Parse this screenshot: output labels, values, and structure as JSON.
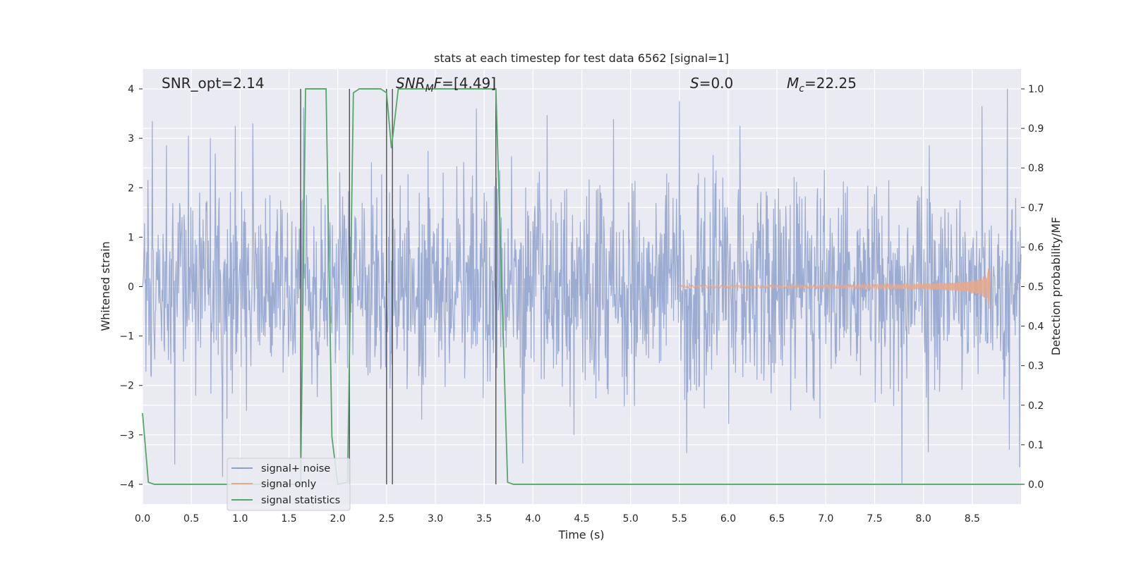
{
  "chart_data": {
    "type": "line",
    "title": "stats at each timestep for test data 6562 [signal=1]",
    "xlabel": "Time (s)",
    "ylabel_left": "Whitened strain",
    "ylabel_right": "Detection probability/MF",
    "xlim": [
      0,
      9.0
    ],
    "ylim_left": [
      -4.4,
      4.4
    ],
    "ylim_right": [
      -0.05,
      1.05
    ],
    "xticks": [
      "0.0",
      "0.5",
      "1.0",
      "1.5",
      "2.0",
      "2.5",
      "3.0",
      "3.5",
      "4.0",
      "4.5",
      "5.0",
      "5.5",
      "6.0",
      "6.5",
      "7.0",
      "7.5",
      "8.0",
      "8.5"
    ],
    "xtick_values": [
      0,
      0.5,
      1,
      1.5,
      2,
      2.5,
      3,
      3.5,
      4,
      4.5,
      5,
      5.5,
      6,
      6.5,
      7,
      7.5,
      8,
      8.5
    ],
    "yticks_left": [
      "4",
      "3",
      "2",
      "1",
      "0",
      "−1",
      "−2",
      "−3",
      "−4"
    ],
    "ytick_values_left": [
      4,
      3,
      2,
      1,
      0,
      -1,
      -2,
      -3,
      -4
    ],
    "yticks_right": [
      "1.0",
      "0.9",
      "0.8",
      "0.7",
      "0.6",
      "0.5",
      "0.4",
      "0.3",
      "0.2",
      "0.1",
      "0.0"
    ],
    "ytick_values_right": [
      1.0,
      0.9,
      0.8,
      0.7,
      0.6,
      0.5,
      0.4,
      0.3,
      0.2,
      0.1,
      0.0
    ],
    "grid": true,
    "legend_position": "lower-left",
    "annotations": {
      "snr_opt": "SNR_opt=2.14",
      "snr_mf_label": "SNR",
      "snr_mf_sub": "M",
      "snr_mf_f": "F",
      "snr_mf_value": "=[4.49]",
      "s_label": "S",
      "s_value": "=0.0",
      "mc_label": "M",
      "mc_sub": "c",
      "mc_value": "=22.25"
    },
    "vertical_markers_x": [
      1.62,
      2.12,
      2.5,
      2.56,
      3.62
    ],
    "series": [
      {
        "name": "signal+ noise",
        "color": "#8da0cb",
        "kind": "noise",
        "amplitude_std": 1.05,
        "x_range": [
          0,
          9.0
        ],
        "notable_peaks": [
          {
            "x": 0.1,
            "y": 3.35
          },
          {
            "x": 0.47,
            "y": 3.05
          },
          {
            "x": 0.95,
            "y": 3.25
          },
          {
            "x": 1.13,
            "y": 3.3
          },
          {
            "x": 3.42,
            "y": 3.6
          },
          {
            "x": 5.5,
            "y": 3.75
          },
          {
            "x": 6.12,
            "y": 3.25
          },
          {
            "x": 8.6,
            "y": 3.65
          },
          {
            "x": 8.86,
            "y": 4.0
          },
          {
            "x": 0.33,
            "y": -3.6
          },
          {
            "x": 0.82,
            "y": -3.85
          },
          {
            "x": 7.78,
            "y": -4.0
          },
          {
            "x": 8.05,
            "y": -3.35
          },
          {
            "x": 8.88,
            "y": -3.3
          }
        ]
      },
      {
        "name": "signal only",
        "color": "#e5a98d",
        "kind": "chirp",
        "x_start": 5.5,
        "x_end": 8.68,
        "max_amplitude": 0.52
      },
      {
        "name": "signal statistics",
        "color": "#55a868",
        "kind": "step",
        "axis": "right",
        "x": [
          0.0,
          0.06,
          0.12,
          1.62,
          1.67,
          1.88,
          1.94,
          2.0,
          2.1,
          2.16,
          2.22,
          2.44,
          2.5,
          2.55,
          2.62,
          3.62,
          3.74,
          3.8,
          9.0
        ],
        "y": [
          0.18,
          0.005,
          0.0,
          0.0,
          1.0,
          1.0,
          0.12,
          0.0,
          0.005,
          0.99,
          1.0,
          1.0,
          0.99,
          0.85,
          1.0,
          1.0,
          0.005,
          0.0,
          0.0
        ]
      }
    ]
  }
}
